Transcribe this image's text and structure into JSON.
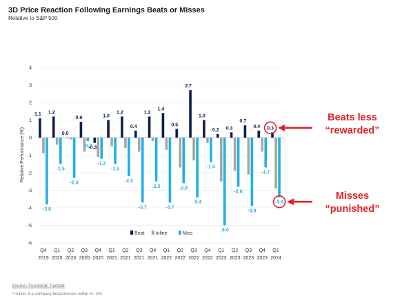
{
  "header": {
    "title": "3D Price Reaction Following Earnings Beats or Misses",
    "subtitle": "Relative to S&P 500"
  },
  "footer": {
    "source": "Source: Fundstrat, Factset",
    "note": "* In-line: if a company beats/misses within +/- 2%"
  },
  "callouts": {
    "beats_line1": "Beats less",
    "beats_line2": "“rewarded”",
    "misses_line1": "Misses",
    "misses_line2": "“punished”"
  },
  "colors": {
    "beat": "#0d1d52",
    "inline": "#a6a6a6",
    "miss": "#1fb0e6",
    "highlight": "#e3202a"
  },
  "chart_data": {
    "type": "bar",
    "title": "3D Price Reaction Following Earnings Beats or Misses",
    "subtitle": "Relative to S&P 500",
    "ylabel": "Relative Performance (%)",
    "ylim": [
      -6,
      4
    ],
    "yticks": [
      "-6",
      "-5",
      "-4",
      "-3",
      "-2",
      "-1",
      "0",
      "1",
      "2",
      "3",
      "4"
    ],
    "grid": true,
    "legend_position": "bottom",
    "categories": [
      "Q4 2019",
      "Q1 2020",
      "Q2 2020",
      "Q3 2020",
      "Q4 2020",
      "Q1 2021",
      "Q2 2021",
      "Q3 2021",
      "Q4 2021",
      "Q1 2022",
      "Q2 2022",
      "Q3 2022",
      "Q4 2022",
      "Q1 2023",
      "Q2 2023",
      "Q3 2023",
      "Q4 2023",
      "Q1 2024"
    ],
    "series": [
      {
        "name": "Beat",
        "values": [
          1.1,
          1.2,
          0.0,
          0.9,
          -0.3,
          1.0,
          1.2,
          0.4,
          1.2,
          1.4,
          0.5,
          2.7,
          1.0,
          0.2,
          0.3,
          0.7,
          0.4,
          0.3
        ],
        "labels": [
          "1.1",
          "1.2",
          "0.0",
          "0.9",
          "-0.3",
          "1.0",
          "1.2",
          "0.4",
          "1.2",
          "1.4",
          "0.5",
          "2.7",
          "1.0",
          "0.2",
          "0.3",
          "0.7",
          "0.4",
          "0.3"
        ]
      },
      {
        "name": "Inline",
        "values": [
          -0.9,
          -0.4,
          -0.1,
          -0.8,
          -1.1,
          -0.5,
          -0.6,
          -0.8,
          -0.2,
          -0.7,
          -1.7,
          -1.3,
          -0.3,
          -2.5,
          -1.9,
          -2.1,
          -0.8,
          -2.9
        ]
      },
      {
        "name": "Miss",
        "values": [
          -3.8,
          -1.5,
          -2.3,
          -0.2,
          -1.2,
          -1.5,
          -2.2,
          -3.7,
          -2.5,
          -3.7,
          -2.6,
          -3.4,
          -1.4,
          -5.0,
          -2.8,
          -3.9,
          -1.7,
          -3.4
        ],
        "labels": [
          "-3.8",
          "-1.5",
          "-2.3",
          "-0.2",
          "-1.2",
          "-1.5",
          "-2.2",
          "-3.7",
          "-2.5",
          "-3.7",
          "-2.6",
          "-3.4",
          "-1.4",
          "-5.0",
          "-2.8",
          "-3.9",
          "-1.7",
          "-3.4"
        ]
      }
    ]
  }
}
